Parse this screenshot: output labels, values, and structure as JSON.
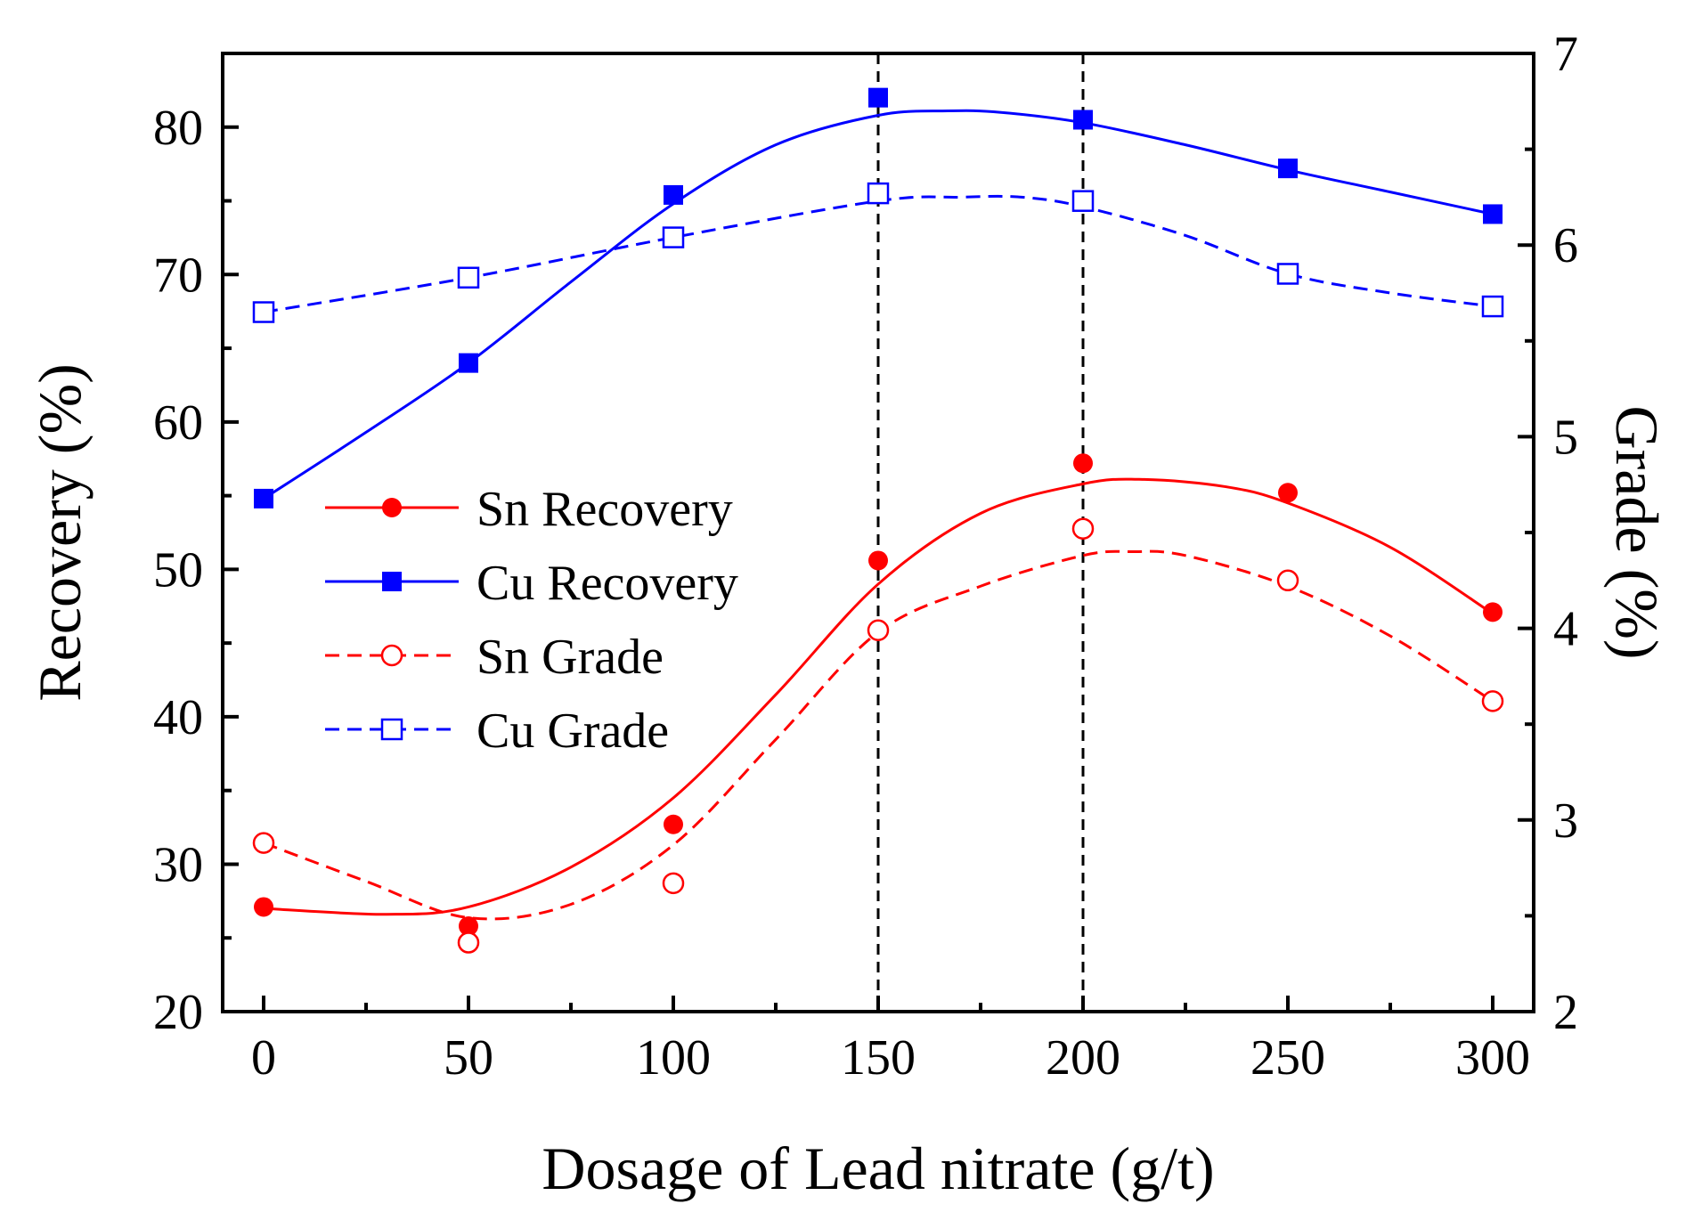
{
  "chart_data": {
    "type": "line",
    "title": "",
    "xlabel": "Dosage of Lead nitrate (g/t)",
    "ylabel": "Recovery (%)",
    "y2label": "Grade (%)",
    "xlim": [
      -10,
      310
    ],
    "ylim": [
      20,
      85
    ],
    "y2lim": [
      2,
      7
    ],
    "xticks": [
      0,
      50,
      100,
      150,
      200,
      250,
      300
    ],
    "yticks": [
      20,
      30,
      40,
      50,
      60,
      70,
      80
    ],
    "y2ticks": [
      2,
      3,
      4,
      5,
      6,
      7
    ],
    "reference_lines_x": [
      150,
      200
    ],
    "legend_position": "center-left",
    "x": [
      0,
      50,
      100,
      150,
      200,
      250,
      300
    ],
    "series": [
      {
        "name": "Sn Recovery",
        "axis": "left",
        "color": "#ff0000",
        "marker": "filled-circle",
        "line": "solid",
        "values": [
          27.1,
          25.8,
          32.7,
          50.6,
          57.2,
          55.2,
          47.1
        ],
        "fit": [
          [
            0,
            27.0
          ],
          [
            30,
            26.6
          ],
          [
            50,
            27.1
          ],
          [
            75,
            29.8
          ],
          [
            100,
            34.5
          ],
          [
            125,
            41.5
          ],
          [
            150,
            49.0
          ],
          [
            175,
            53.8
          ],
          [
            200,
            55.8
          ],
          [
            215,
            56.1
          ],
          [
            235,
            55.6
          ],
          [
            250,
            54.5
          ],
          [
            275,
            51.5
          ],
          [
            300,
            47.0
          ]
        ]
      },
      {
        "name": "Cu Recovery",
        "axis": "left",
        "color": "#0000ff",
        "marker": "filled-square",
        "line": "solid",
        "values": [
          54.8,
          64.0,
          75.4,
          82.0,
          80.5,
          77.2,
          74.1
        ],
        "fit": [
          [
            0,
            54.8
          ],
          [
            25,
            59.3
          ],
          [
            50,
            64.0
          ],
          [
            75,
            69.5
          ],
          [
            100,
            74.8
          ],
          [
            125,
            78.8
          ],
          [
            150,
            80.8
          ],
          [
            167,
            81.1
          ],
          [
            180,
            81.0
          ],
          [
            200,
            80.3
          ],
          [
            225,
            78.8
          ],
          [
            250,
            77.1
          ],
          [
            275,
            75.6
          ],
          [
            300,
            74.1
          ]
        ]
      },
      {
        "name": "Sn Grade",
        "axis": "right",
        "color": "#ff0000",
        "marker": "open-circle",
        "line": "dashed",
        "values": [
          2.88,
          2.36,
          2.67,
          3.99,
          4.52,
          4.25,
          3.62
        ],
        "fit": [
          [
            0,
            2.88
          ],
          [
            25,
            2.68
          ],
          [
            50,
            2.49
          ],
          [
            75,
            2.56
          ],
          [
            100,
            2.87
          ],
          [
            125,
            3.42
          ],
          [
            150,
            3.98
          ],
          [
            175,
            4.22
          ],
          [
            200,
            4.38
          ],
          [
            212,
            4.4
          ],
          [
            225,
            4.38
          ],
          [
            250,
            4.22
          ],
          [
            275,
            3.96
          ],
          [
            300,
            3.62
          ]
        ]
      },
      {
        "name": "Cu Grade",
        "axis": "right",
        "color": "#0000ff",
        "marker": "open-square",
        "line": "dashed",
        "values": [
          5.65,
          5.83,
          6.04,
          6.27,
          6.23,
          5.85,
          5.68
        ],
        "fit": [
          [
            0,
            5.65
          ],
          [
            50,
            5.83
          ],
          [
            100,
            6.04
          ],
          [
            150,
            6.23
          ],
          [
            170,
            6.25
          ],
          [
            185,
            6.25
          ],
          [
            200,
            6.2
          ],
          [
            225,
            6.05
          ],
          [
            250,
            5.85
          ],
          [
            275,
            5.75
          ],
          [
            300,
            5.68
          ]
        ]
      }
    ]
  }
}
